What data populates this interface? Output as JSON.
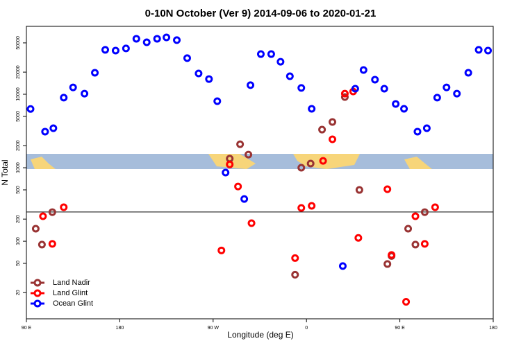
{
  "chart_data": {
    "type": "scatter",
    "title": "0-10N October (Ver 9)   2014-09-06 to 2020-01-21",
    "x_label": "Longitude (deg E)",
    "y_label": "N Total",
    "xlim": [
      90,
      540
    ],
    "xticks": [
      {
        "value": 90,
        "label": "90 E"
      },
      180,
      {
        "value": 270,
        "label": "90 W"
      },
      {
        "value": 360,
        "label": "0"
      },
      {
        "value": 450,
        "label": "90 E"
      },
      {
        "value": 540,
        "label": "180"
      }
    ],
    "ylim": [
      8.8,
      84000
    ],
    "y_log": true,
    "yticks": [
      20,
      50,
      100,
      200,
      500,
      1000,
      2000,
      5000,
      10000,
      20000,
      50000
    ],
    "reference_line": 250,
    "legend": "bottom-left",
    "series": [
      {
        "name": "Land Nadir",
        "color": "#993333",
        "x": [
          99,
          105,
          115,
          286,
          296,
          304,
          349,
          355,
          364,
          375,
          385,
          397,
          411,
          438,
          442,
          458,
          465,
          474
        ],
        "values": [
          148,
          90,
          249,
          1330,
          2090,
          1510,
          35,
          1000,
          1140,
          3300,
          4200,
          9160,
          499,
          49,
          63,
          148,
          90,
          249
        ]
      },
      {
        "name": "Land Glint",
        "color": "#ff0000",
        "x": [
          106,
          115,
          126,
          278,
          286,
          294,
          307,
          349,
          355,
          365,
          376,
          385,
          397,
          405,
          410,
          438,
          442,
          456,
          465,
          474,
          484
        ],
        "values": [
          219,
          92,
          290,
          75,
          1110,
          556,
          176,
          59,
          284,
          303,
          1240,
          2440,
          10200,
          10900,
          111,
          511,
          65,
          15,
          219,
          92,
          290
        ]
      },
      {
        "name": "Ocean Glint",
        "color": "#0000ff",
        "x": [
          94,
          108,
          116,
          126,
          135,
          146,
          156,
          166,
          176,
          186,
          196,
          206,
          216,
          225,
          235,
          245,
          256,
          266,
          274,
          282,
          300,
          306,
          316,
          326,
          335,
          344,
          355,
          365,
          395,
          407,
          415,
          426,
          435,
          446,
          454,
          467,
          476,
          486,
          495,
          505,
          516,
          526,
          535
        ],
        "values": [
          6300,
          3100,
          3450,
          9000,
          12400,
          10200,
          19600,
          40200,
          39300,
          42000,
          56900,
          51000,
          56900,
          59400,
          54500,
          31000,
          19200,
          16100,
          8050,
          860,
          376,
          13300,
          35200,
          35200,
          27700,
          17600,
          12200,
          6340,
          46,
          11900,
          21400,
          15800,
          11900,
          7380,
          6340,
          3100,
          3450,
          9000,
          12400,
          10200,
          19600,
          40200,
          39300
        ]
      }
    ]
  }
}
